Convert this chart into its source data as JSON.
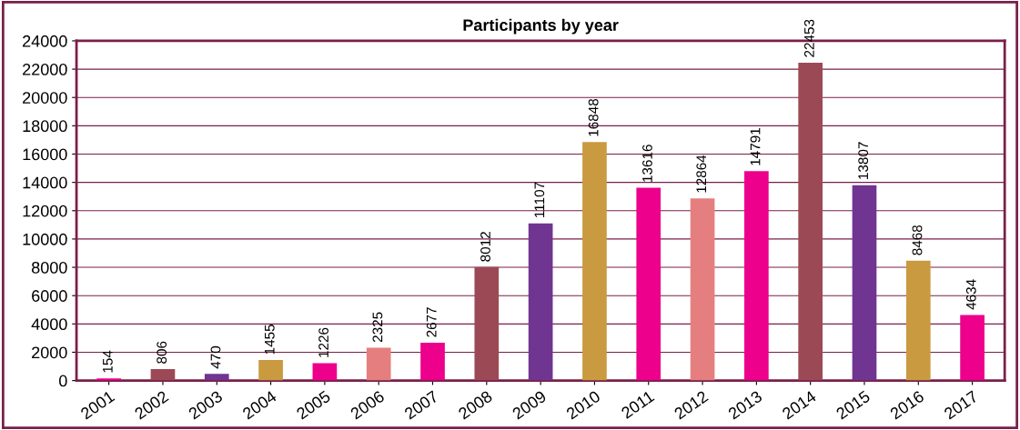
{
  "chart_data": {
    "type": "bar",
    "title": "Participants by year",
    "categories": [
      "2001",
      "2002",
      "2003",
      "2004",
      "2005",
      "2006",
      "2007",
      "2008",
      "2009",
      "2010",
      "2011",
      "2012",
      "2013",
      "2014",
      "2015",
      "2016",
      "2017"
    ],
    "values": [
      154,
      806,
      470,
      1455,
      1226,
      2325,
      2677,
      8012,
      11107,
      16848,
      13616,
      12864,
      14791,
      22453,
      13807,
      8468,
      4634
    ],
    "colors": [
      "#ec008c",
      "#9b4a55",
      "#6f3591",
      "#c99a3f",
      "#ec008c",
      "#e57f7f",
      "#ec008c",
      "#9b4a55",
      "#6f3591",
      "#c99a3f",
      "#ec008c",
      "#e57f7f",
      "#ec008c",
      "#9b4a55",
      "#6f3591",
      "#c99a3f",
      "#ec008c"
    ],
    "ylim": [
      0,
      24000
    ],
    "yticks": [
      0,
      2000,
      4000,
      6000,
      8000,
      10000,
      12000,
      14000,
      16000,
      18000,
      20000,
      22000,
      24000
    ],
    "grid": "y",
    "data_labels": true
  }
}
